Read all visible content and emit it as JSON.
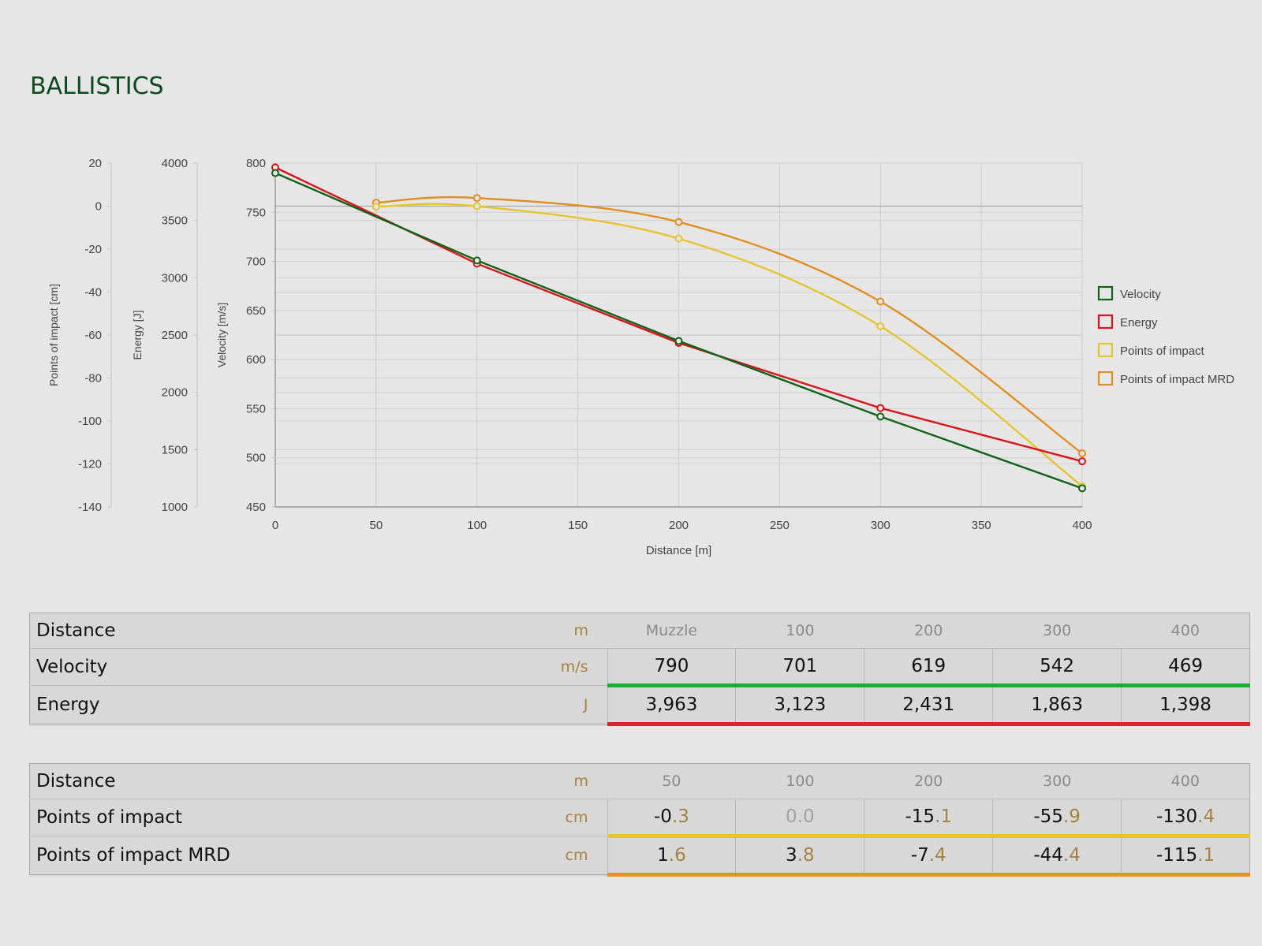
{
  "page": {
    "title": "BALLISTICS"
  },
  "colors": {
    "velocity": "#0f6316",
    "energy": "#d8141a",
    "poi": "#e6c52b",
    "poi_mrd": "#e28d1c",
    "velocity_bar": "#20a935",
    "energy_bar": "#d8252a",
    "poi_bar": "#e6c52b",
    "poi_mrd_bar": "#e59423",
    "unit": "#a5823e",
    "title": "#0b4a1e"
  },
  "chart_data": {
    "type": "line",
    "xlabel": "Distance [m]",
    "xlim": [
      0,
      400
    ],
    "x_ticks": [
      0,
      50,
      100,
      150,
      200,
      250,
      300,
      350,
      400
    ],
    "grid": true,
    "legend_position": "right",
    "axes": [
      {
        "id": "poi",
        "label": "Points of impact [cm]",
        "range": [
          -140,
          20
        ],
        "ticks": [
          20,
          0,
          -20,
          -40,
          -60,
          -80,
          -100,
          -120,
          -140
        ]
      },
      {
        "id": "energy",
        "label": "Energy [J]",
        "range": [
          1000,
          4000
        ],
        "ticks": [
          4000,
          3500,
          3000,
          2500,
          2000,
          1500,
          1000
        ]
      },
      {
        "id": "velocity",
        "label": "Velocity [m/s]",
        "range": [
          450,
          800
        ],
        "ticks": [
          800,
          750,
          700,
          650,
          600,
          550,
          500,
          450
        ]
      }
    ],
    "series": [
      {
        "name": "Velocity",
        "axis": "velocity",
        "color_key": "velocity",
        "smooth": false,
        "x": [
          0,
          100,
          200,
          300,
          400
        ],
        "y": [
          790,
          701,
          619,
          542,
          469
        ]
      },
      {
        "name": "Energy",
        "axis": "energy",
        "color_key": "energy",
        "smooth": false,
        "x": [
          0,
          100,
          200,
          300,
          400
        ],
        "y": [
          3963,
          3123,
          2431,
          1863,
          1398
        ]
      },
      {
        "name": "Points of impact",
        "axis": "poi",
        "color_key": "poi",
        "smooth": true,
        "x": [
          50,
          100,
          200,
          300,
          400
        ],
        "y": [
          -0.3,
          0.0,
          -15.1,
          -55.9,
          -130.4
        ]
      },
      {
        "name": "Points of impact MRD",
        "axis": "poi",
        "color_key": "poi_mrd",
        "smooth": true,
        "x": [
          50,
          100,
          200,
          300,
          400
        ],
        "y": [
          1.6,
          3.8,
          -7.4,
          -44.4,
          -115.1
        ]
      }
    ]
  },
  "tables": [
    {
      "header": {
        "label": "Distance",
        "unit": "m",
        "cols": [
          "Muzzle",
          "100",
          "200",
          "300",
          "400"
        ]
      },
      "rows": [
        {
          "label": "Velocity",
          "unit": "m/s",
          "bar": "green",
          "cells": [
            {
              "int": "790",
              "frac": ""
            },
            {
              "int": "701",
              "frac": ""
            },
            {
              "int": "619",
              "frac": ""
            },
            {
              "int": "542",
              "frac": ""
            },
            {
              "int": "469",
              "frac": ""
            }
          ]
        },
        {
          "label": "Energy",
          "unit": "J",
          "bar": "red",
          "cells": [
            {
              "int": "3,963",
              "frac": ""
            },
            {
              "int": "3,123",
              "frac": ""
            },
            {
              "int": "2,431",
              "frac": ""
            },
            {
              "int": "1,863",
              "frac": ""
            },
            {
              "int": "1,398",
              "frac": ""
            }
          ]
        }
      ]
    },
    {
      "header": {
        "label": "Distance",
        "unit": "m",
        "cols": [
          "50",
          "100",
          "200",
          "300",
          "400"
        ]
      },
      "rows": [
        {
          "label": "Points of impact",
          "unit": "cm",
          "bar": "yellow",
          "cells": [
            {
              "int": "-0",
              "frac": ".3"
            },
            {
              "int": "0",
              "frac": ".0",
              "muted": true
            },
            {
              "int": "-15",
              "frac": ".1"
            },
            {
              "int": "-55",
              "frac": ".9"
            },
            {
              "int": "-130",
              "frac": ".4"
            }
          ]
        },
        {
          "label": "Points of impact MRD",
          "unit": "cm",
          "bar": "orange",
          "cells": [
            {
              "int": "1",
              "frac": ".6"
            },
            {
              "int": "3",
              "frac": ".8"
            },
            {
              "int": "-7",
              "frac": ".4"
            },
            {
              "int": "-44",
              "frac": ".4"
            },
            {
              "int": "-115",
              "frac": ".1"
            }
          ]
        }
      ]
    }
  ]
}
